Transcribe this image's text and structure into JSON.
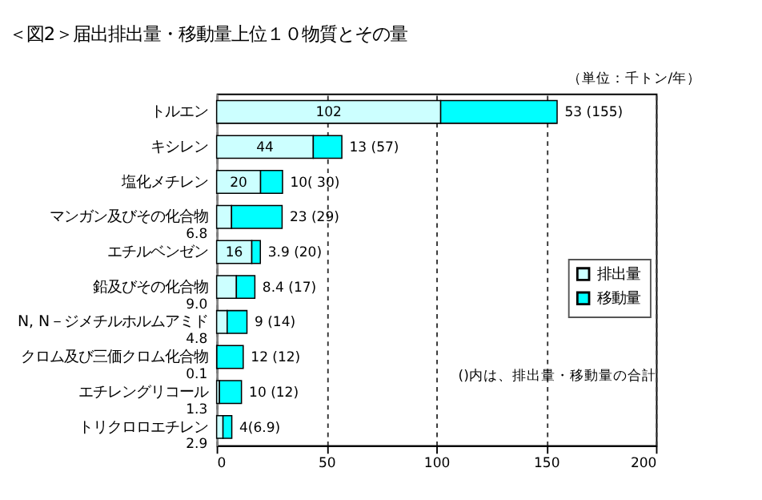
{
  "chart_data": {
    "type": "bar",
    "orientation": "horizontal",
    "stacked": true,
    "title": "＜図2＞届出排出量・移動量上位１０物質とその量",
    "categories": [
      "トルエン",
      "キシレン",
      "塩化メチレン",
      "マンガン及びその化合物",
      "エチルベンゼン",
      "鉛及びその化合物",
      "N, N－ジメチルホルムアミド",
      "クロム及び三価クロム化合物",
      "エチレングリコール",
      "トリクロロエチレン"
    ],
    "series": [
      {
        "name": "排出量",
        "color": "#ccffff",
        "values": [
          102,
          44,
          20,
          6.8,
          16,
          9.0,
          4.8,
          0.1,
          1.3,
          2.9
        ],
        "value_labels": [
          "102",
          "44",
          "20",
          "6.8",
          "16",
          "9.0",
          "4.8",
          "0.1",
          "1.3",
          "2.9"
        ]
      },
      {
        "name": "移動量",
        "color": "#00ffff",
        "values": [
          53,
          13,
          10,
          23,
          3.9,
          8.4,
          9,
          12,
          10,
          4
        ],
        "value_labels": [
          "53 (155)",
          "13 (57)",
          "10( 30)",
          "23 (29)",
          "3.9 (20)",
          "8.4 (17)",
          "9 (14)",
          "12 (12)",
          "10 (12)",
          "4(6.9)"
        ]
      }
    ],
    "xlim": [
      0,
      200
    ],
    "xticks": [
      0,
      50,
      100,
      150,
      200
    ],
    "grid": "x",
    "legend": "right",
    "annotations": [
      "（単位：千トン/年）",
      "()内は、排出量・移動量の合計"
    ]
  }
}
